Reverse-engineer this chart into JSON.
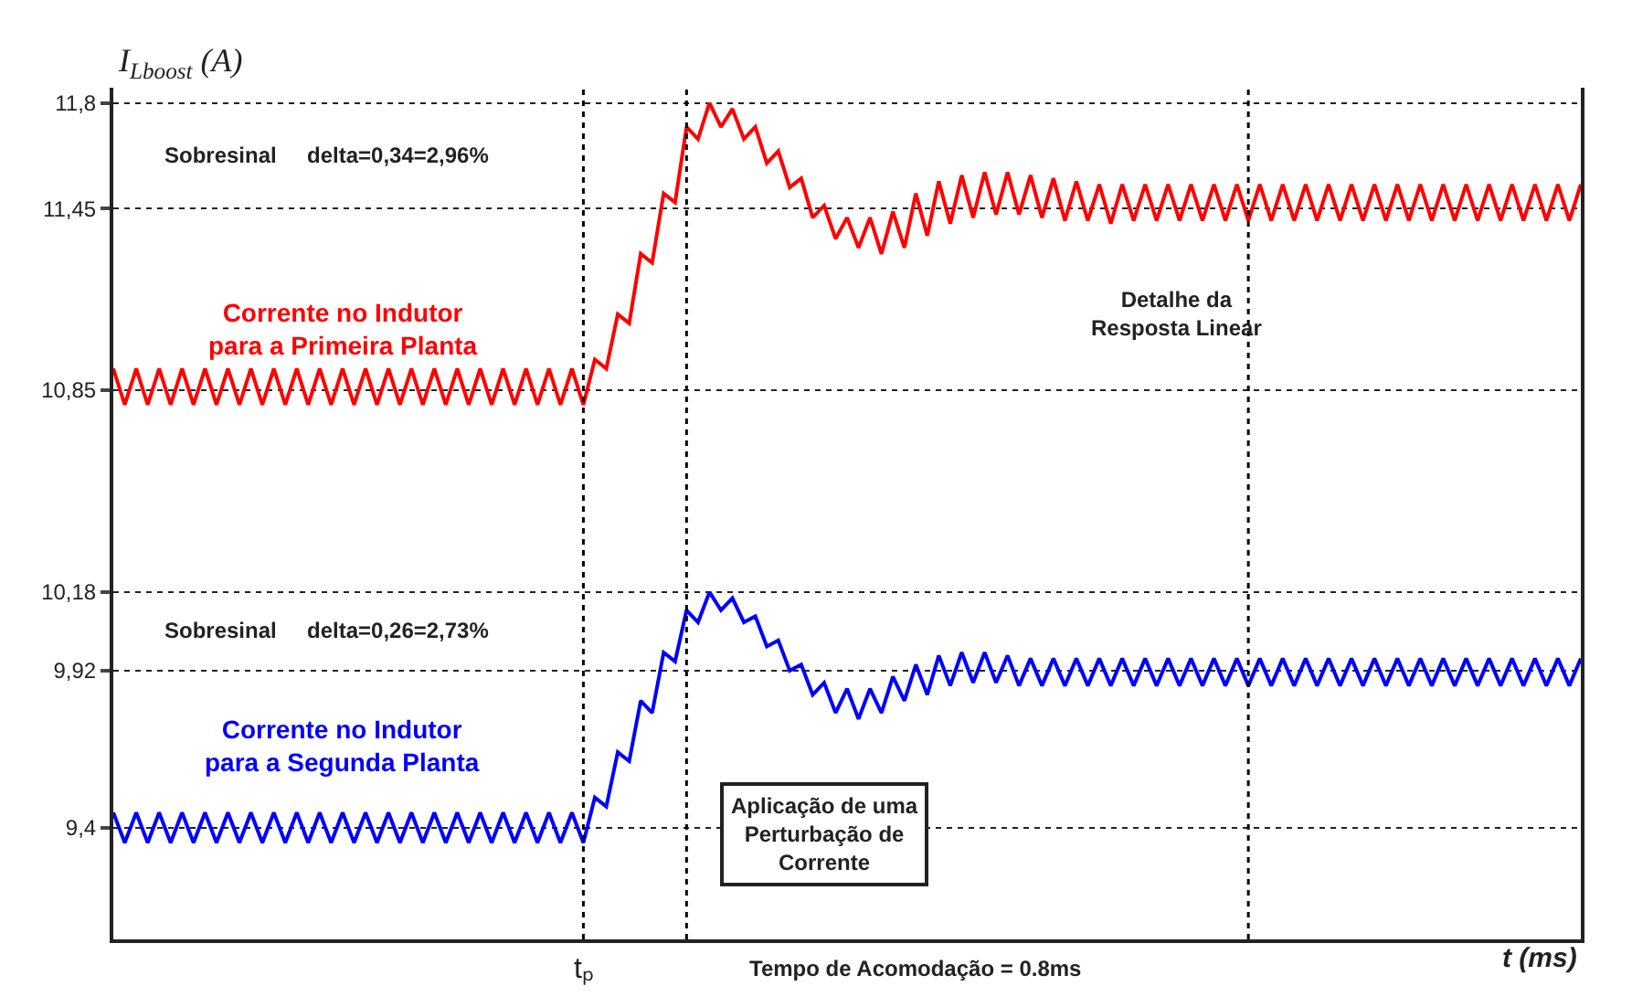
{
  "chart_data": {
    "type": "line",
    "ylabel": "I$_{Lboost}$ (A)",
    "xlabel": "t (ms)",
    "categories": [
      null,
      null,
      null,
      null,
      null,
      null,
      null,
      null,
      null,
      null,
      null,
      null,
      null,
      null,
      null,
      null,
      null,
      null,
      null,
      null,
      null,
      null,
      null,
      null,
      null,
      null,
      null,
      null,
      null,
      null,
      null,
      null,
      null,
      null,
      null,
      null,
      null,
      null,
      null,
      null,
      null,
      "tₚ",
      null,
      null,
      null,
      null,
      null,
      null,
      null,
      null,
      null,
      null,
      null,
      null,
      null,
      null,
      null,
      null,
      null,
      null,
      null,
      null,
      null,
      null,
      null,
      null,
      null,
      null,
      null,
      null,
      null,
      null,
      null,
      null,
      null,
      null,
      null,
      null,
      null,
      null,
      null,
      null,
      null,
      null,
      null,
      null,
      null,
      null,
      null,
      null,
      null,
      null,
      null,
      null,
      null,
      null,
      null,
      null,
      null,
      null,
      null,
      null,
      null,
      null,
      null,
      null,
      null,
      null,
      null,
      null,
      null,
      null,
      null,
      null,
      null,
      null,
      null,
      null,
      null,
      null,
      null,
      null,
      null,
      null,
      null,
      null,
      null,
      null,
      null
    ],
    "series": [
      {
        "name": "Corrente no Indutor\npara a Primeira Planta",
        "color": "#ff0000",
        "values": [
          10.92,
          10.8,
          10.92,
          10.8,
          10.92,
          10.8,
          10.92,
          10.8,
          10.92,
          10.8,
          10.92,
          10.8,
          10.92,
          10.8,
          10.92,
          10.8,
          10.92,
          10.8,
          10.92,
          10.8,
          10.92,
          10.8,
          10.92,
          10.8,
          10.92,
          10.8,
          10.92,
          10.8,
          10.92,
          10.8,
          10.92,
          10.8,
          10.92,
          10.8,
          10.92,
          10.8,
          10.92,
          10.8,
          10.92,
          10.8,
          10.92,
          10.8,
          10.95,
          10.92,
          11.1,
          11.07,
          11.3,
          11.27,
          11.5,
          11.47,
          11.72,
          11.68,
          11.8,
          11.72,
          11.78,
          11.68,
          11.72,
          11.6,
          11.64,
          11.52,
          11.55,
          11.42,
          11.46,
          11.35,
          11.42,
          11.32,
          11.42,
          11.3,
          11.44,
          11.32,
          11.5,
          11.36,
          11.54,
          11.4,
          11.56,
          11.42,
          11.57,
          11.43,
          11.57,
          11.43,
          11.56,
          11.42,
          11.55,
          11.41,
          11.54,
          11.41,
          11.53,
          11.4,
          11.53,
          11.41,
          11.53,
          11.41,
          11.53,
          11.41,
          11.53,
          11.41,
          11.53,
          11.41,
          11.53,
          11.41,
          11.53,
          11.41,
          11.53,
          11.41,
          11.53,
          11.41,
          11.53,
          11.41,
          11.53,
          11.41,
          11.53,
          11.41,
          11.53,
          11.41,
          11.53,
          11.41,
          11.53,
          11.41,
          11.53,
          11.41,
          11.53,
          11.41,
          11.53,
          11.41,
          11.53,
          11.41,
          11.53,
          11.41,
          11.53
        ]
      },
      {
        "name": "Corrente no Indutor\npara a Segunda Planta",
        "color": "#0000ff",
        "values": [
          9.45,
          9.35,
          9.45,
          9.35,
          9.45,
          9.35,
          9.45,
          9.35,
          9.45,
          9.35,
          9.45,
          9.35,
          9.45,
          9.35,
          9.45,
          9.35,
          9.45,
          9.35,
          9.45,
          9.35,
          9.45,
          9.35,
          9.45,
          9.35,
          9.45,
          9.35,
          9.45,
          9.35,
          9.45,
          9.35,
          9.45,
          9.35,
          9.45,
          9.35,
          9.45,
          9.35,
          9.45,
          9.35,
          9.45,
          9.35,
          9.45,
          9.35,
          9.5,
          9.47,
          9.65,
          9.62,
          9.82,
          9.78,
          9.98,
          9.95,
          10.12,
          10.08,
          10.18,
          10.12,
          10.16,
          10.08,
          10.1,
          10.0,
          10.02,
          9.92,
          9.94,
          9.84,
          9.88,
          9.78,
          9.86,
          9.76,
          9.86,
          9.78,
          9.9,
          9.82,
          9.94,
          9.84,
          9.97,
          9.87,
          9.98,
          9.88,
          9.98,
          9.88,
          9.97,
          9.87,
          9.96,
          9.87,
          9.96,
          9.87,
          9.96,
          9.87,
          9.96,
          9.87,
          9.96,
          9.87,
          9.96,
          9.87,
          9.96,
          9.87,
          9.96,
          9.87,
          9.96,
          9.87,
          9.96,
          9.87,
          9.96,
          9.87,
          9.96,
          9.87,
          9.96,
          9.87,
          9.96,
          9.87,
          9.96,
          9.87,
          9.96,
          9.87,
          9.96,
          9.87,
          9.96,
          9.87,
          9.96,
          9.87,
          9.96,
          9.87,
          9.96,
          9.87,
          9.96,
          9.87,
          9.96,
          9.87,
          9.96,
          9.87,
          9.96
        ]
      }
    ],
    "ylim": [
      9.03,
      11.85
    ],
    "yticks": [
      {
        "value": 9.4,
        "label": "9,4"
      },
      {
        "value": 9.92,
        "label": "9,92"
      },
      {
        "value": 10.18,
        "label": "10,18"
      },
      {
        "value": 10.85,
        "label": "10,85"
      },
      {
        "value": 11.45,
        "label": "11,45"
      },
      {
        "value": 11.8,
        "label": "11,8"
      }
    ],
    "grid": "y",
    "line_style": "solid",
    "annotations": [
      "Sobresinal",
      "delta=0,34=2,96%",
      "Sobresinal",
      "delta=0,26=2,73%",
      "Detalhe da\nResposta Linear",
      "Aplicação de uma\nPerturbação de\nCorrente",
      "Tempo de Acomodação = 0.8ms"
    ]
  }
}
